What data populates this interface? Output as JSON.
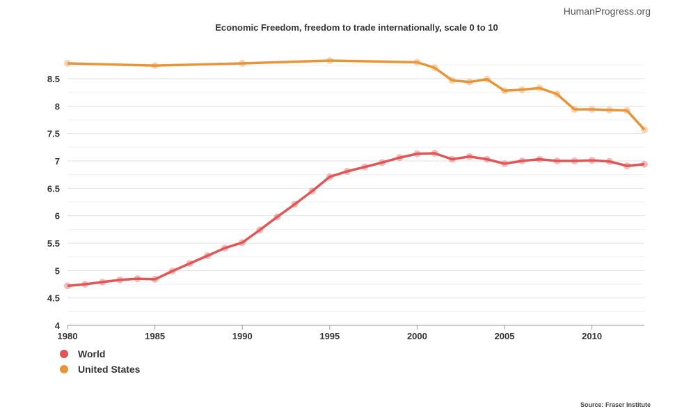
{
  "brand": "HumanProgress.org",
  "source": "Source: Fraser Institute",
  "chart_data": {
    "type": "line",
    "title": "Economic Freedom, freedom to trade internationally, scale 0 to 10",
    "xlabel": "",
    "ylabel": "",
    "xlim": [
      1980,
      2013
    ],
    "ylim": [
      4,
      9
    ],
    "xticks": [
      1980,
      1985,
      1990,
      1995,
      2000,
      2005,
      2010
    ],
    "yticks": [
      4,
      4.5,
      5,
      5.5,
      6,
      6.5,
      7,
      7.5,
      8,
      8.5
    ],
    "ytick_labels": [
      "4",
      "4.5",
      "5",
      "5.5",
      "6",
      "6.5",
      "7",
      "7.5",
      "8",
      "8.5"
    ],
    "legend": "bottom-left",
    "series": [
      {
        "name": "World",
        "color": "#e05555",
        "x": [
          1980,
          1981,
          1982,
          1983,
          1984,
          1985,
          1986,
          1987,
          1988,
          1989,
          1990,
          1991,
          1992,
          1993,
          1994,
          1995,
          1996,
          1997,
          1998,
          1999,
          2000,
          2001,
          2002,
          2003,
          2004,
          2005,
          2006,
          2007,
          2008,
          2009,
          2010,
          2011,
          2012,
          2013
        ],
        "values": [
          4.72,
          4.75,
          4.79,
          4.83,
          4.85,
          4.84,
          4.99,
          5.13,
          5.27,
          5.41,
          5.51,
          5.74,
          5.98,
          6.21,
          6.45,
          6.71,
          6.81,
          6.89,
          6.97,
          7.06,
          7.13,
          7.14,
          7.03,
          7.08,
          7.03,
          6.95,
          7.0,
          7.03,
          7.0,
          7.0,
          7.01,
          6.99,
          6.91,
          6.94
        ]
      },
      {
        "name": "United States",
        "color": "#e8953a",
        "x": [
          1980,
          1985,
          1990,
          1995,
          2000,
          2001,
          2002,
          2003,
          2004,
          2005,
          2006,
          2007,
          2008,
          2009,
          2010,
          2011,
          2012,
          2013
        ],
        "values": [
          8.78,
          8.74,
          8.78,
          8.83,
          8.8,
          8.7,
          8.47,
          8.44,
          8.49,
          8.28,
          8.3,
          8.33,
          8.22,
          7.94,
          7.94,
          7.93,
          7.92,
          7.57
        ]
      }
    ]
  }
}
